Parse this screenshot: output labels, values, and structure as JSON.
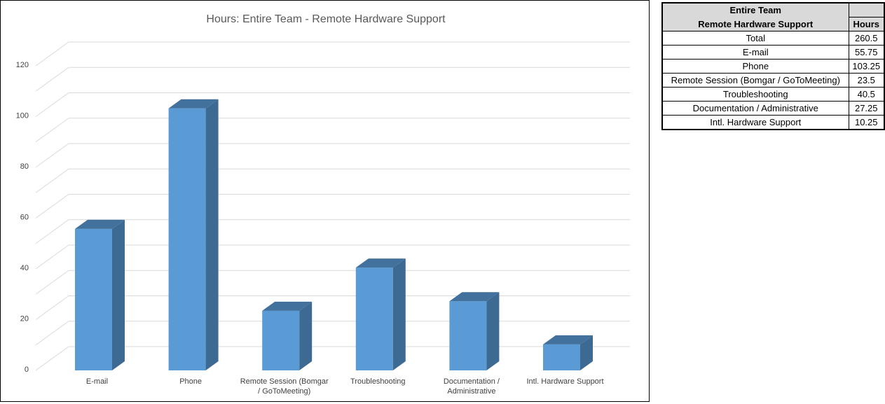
{
  "chart_data": {
    "type": "bar",
    "title": "Hours: Entire Team - Remote Hardware Support",
    "categories": [
      "E-mail",
      "Phone",
      "Remote Session (Bomgar / GoToMeeting)",
      "Troubleshooting",
      "Documentation / Administrative",
      "Intl. Hardware Support"
    ],
    "category_label_lines": [
      [
        "E-mail"
      ],
      [
        "Phone"
      ],
      [
        "Remote Session (Bomgar",
        "/ GoToMeeting)"
      ],
      [
        "Troubleshooting"
      ],
      [
        "Documentation /",
        "Administrative"
      ],
      [
        "Intl. Hardware Support"
      ]
    ],
    "values": [
      55.75,
      103.25,
      23.5,
      40.5,
      27.25,
      10.25
    ],
    "ylim": [
      0,
      120
    ],
    "yticks": [
      "0",
      "20",
      "40",
      "60",
      "80",
      "100",
      "120"
    ],
    "grid": true,
    "legend": "none",
    "style": "3d-column",
    "colors": {
      "bar_front": "#5b9bd5",
      "bar_side": "#3d6a93",
      "bar_top": "#41719c",
      "grid": "#d9d9d9"
    }
  },
  "table": {
    "header_line1": "Entire Team",
    "header_line2": "Remote Hardware Support",
    "header_hours": "Hours",
    "rows": [
      {
        "label": "Total",
        "hours": "260.5"
      },
      {
        "label": "E-mail",
        "hours": "55.75"
      },
      {
        "label": "Phone",
        "hours": "103.25"
      },
      {
        "label": "Remote Session (Bomgar / GoToMeeting)",
        "hours": "23.5"
      },
      {
        "label": "Troubleshooting",
        "hours": "40.5"
      },
      {
        "label": "Documentation / Administrative",
        "hours": "27.25"
      },
      {
        "label": "Intl. Hardware Support",
        "hours": "10.25"
      }
    ]
  }
}
